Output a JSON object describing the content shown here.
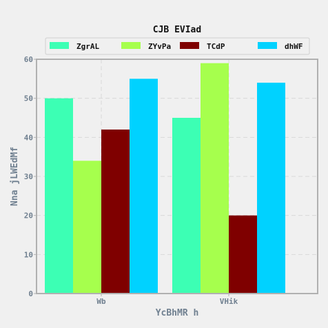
{
  "chart_data": {
    "type": "bar",
    "title": "CJB EVIad",
    "xlabel": "YcBhMR h",
    "ylabel": "Nna jLWEdMf",
    "categories": [
      "Wb",
      "VHik"
    ],
    "series": [
      {
        "name": "ZgrAL",
        "color": "#3cffb4",
        "values": [
          50,
          45
        ]
      },
      {
        "name": "ZYvPa",
        "color": "#a6ff4d",
        "values": [
          34,
          59
        ]
      },
      {
        "name": "TCdP",
        "color": "#7f0000",
        "values": [
          42,
          20
        ]
      },
      {
        "name": "dhWF",
        "color": "#00d2ff",
        "values": [
          55,
          54
        ]
      }
    ],
    "ylim": [
      0,
      60
    ],
    "yticks": [
      0,
      10,
      20,
      30,
      40,
      50,
      60
    ],
    "grid": true,
    "legend_position": "top"
  }
}
